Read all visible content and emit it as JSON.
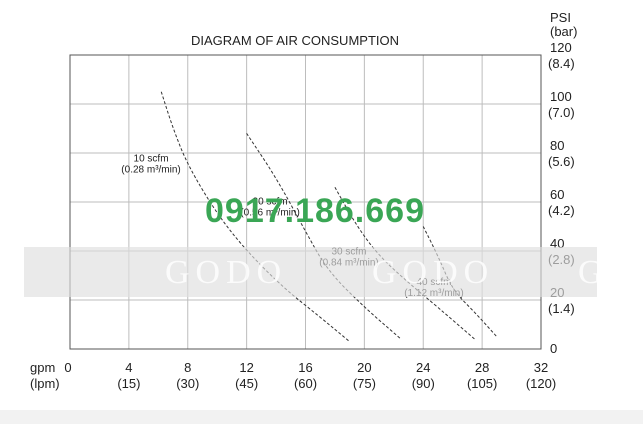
{
  "chart_data": {
    "type": "line",
    "title": "DIAGRAM OF AIR CONSUMPTION",
    "x_axis": {
      "title_line1": "gpm",
      "title_line2": "(lpm)",
      "ticks": [
        {
          "value": 0,
          "label": "0",
          "label2": ""
        },
        {
          "value": 4,
          "label": "4",
          "label2": "(15)"
        },
        {
          "value": 8,
          "label": "8",
          "label2": "(30)"
        },
        {
          "value": 12,
          "label": "12",
          "label2": "(45)"
        },
        {
          "value": 16,
          "label": "16",
          "label2": "(60)"
        },
        {
          "value": 20,
          "label": "20",
          "label2": "(75)"
        },
        {
          "value": 24,
          "label": "24",
          "label2": "(90)"
        },
        {
          "value": 28,
          "label": "28",
          "label2": "(105)"
        },
        {
          "value": 32,
          "label": "32",
          "label2": "(120)"
        }
      ],
      "xlim": [
        0,
        32
      ]
    },
    "y_axis": {
      "title_line1": "PSI",
      "title_line2": "(bar)",
      "ticks": [
        {
          "value": 0,
          "label": "0",
          "label2": ""
        },
        {
          "value": 20,
          "label": "20",
          "label2": "(1.4)"
        },
        {
          "value": 40,
          "label": "40",
          "label2": "(2.8)"
        },
        {
          "value": 60,
          "label": "60",
          "label2": "(4.2)"
        },
        {
          "value": 80,
          "label": "80",
          "label2": "(5.6)"
        },
        {
          "value": 100,
          "label": "100",
          "label2": "(7.0)"
        },
        {
          "value": 120,
          "label": "120",
          "label2": "(8.4)"
        }
      ],
      "ylim": [
        0,
        120
      ]
    },
    "grid": true,
    "series": [
      {
        "name": "10 scfm",
        "name2": "(0.28 m³/min)",
        "points": [
          [
            6.2,
            105
          ],
          [
            7,
            90
          ],
          [
            8,
            75
          ],
          [
            10,
            55
          ],
          [
            12,
            40
          ],
          [
            14.5,
            25
          ],
          [
            17,
            13
          ],
          [
            19,
            3
          ]
        ]
      },
      {
        "name": "20 scfm",
        "name2": "(0.56 m³/min)",
        "points": [
          [
            12,
            88
          ],
          [
            14,
            70
          ],
          [
            16,
            48
          ],
          [
            17.5,
            32
          ],
          [
            20,
            17
          ],
          [
            22.5,
            4
          ]
        ]
      },
      {
        "name": "30 scfm",
        "name2": "(0.84 m³/min)",
        "points": [
          [
            18,
            66
          ],
          [
            19.5,
            50
          ],
          [
            21,
            38
          ],
          [
            23,
            27
          ],
          [
            25,
            17
          ],
          [
            27.5,
            4
          ]
        ]
      },
      {
        "name": "40 scfm",
        "name2": "(1.12 m³/min)",
        "points": [
          [
            24,
            50
          ],
          [
            25,
            38
          ],
          [
            26,
            24
          ],
          [
            27.5,
            15
          ],
          [
            29,
            5
          ]
        ]
      }
    ]
  },
  "watermark": {
    "phone": "0917.186.669",
    "words": [
      "GODO",
      "GODO",
      "G"
    ]
  }
}
